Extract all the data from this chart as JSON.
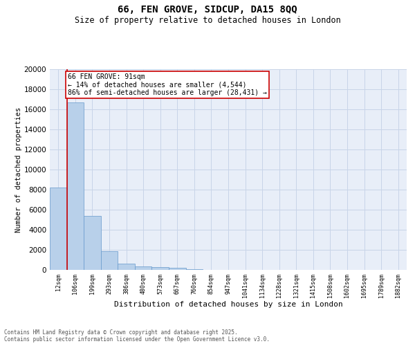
{
  "title_line1": "66, FEN GROVE, SIDCUP, DA15 8QQ",
  "title_line2": "Size of property relative to detached houses in London",
  "xlabel": "Distribution of detached houses by size in London",
  "ylabel": "Number of detached properties",
  "bar_values": [
    8200,
    16700,
    5350,
    1850,
    650,
    350,
    275,
    200,
    50,
    0,
    0,
    0,
    0,
    0,
    0,
    0,
    0,
    0,
    0,
    0,
    0
  ],
  "bar_labels": [
    "12sqm",
    "106sqm",
    "199sqm",
    "293sqm",
    "386sqm",
    "480sqm",
    "573sqm",
    "667sqm",
    "760sqm",
    "854sqm",
    "947sqm",
    "1041sqm",
    "1134sqm",
    "1228sqm",
    "1321sqm",
    "1415sqm",
    "1508sqm",
    "1602sqm",
    "1695sqm",
    "1789sqm",
    "1882sqm"
  ],
  "bar_color": "#b8d0ea",
  "bar_edge_color": "#6699cc",
  "vline_color": "#cc0000",
  "ylim": [
    0,
    20000
  ],
  "yticks": [
    0,
    2000,
    4000,
    6000,
    8000,
    10000,
    12000,
    14000,
    16000,
    18000,
    20000
  ],
  "annotation_text": "66 FEN GROVE: 91sqm\n← 14% of detached houses are smaller (4,544)\n86% of semi-detached houses are larger (28,431) →",
  "annotation_box_color": "#ffffff",
  "annotation_border_color": "#cc0000",
  "grid_color": "#c8d4e8",
  "bg_color": "#e8eef8",
  "footer_line1": "Contains HM Land Registry data © Crown copyright and database right 2025.",
  "footer_line2": "Contains public sector information licensed under the Open Government Licence v3.0."
}
